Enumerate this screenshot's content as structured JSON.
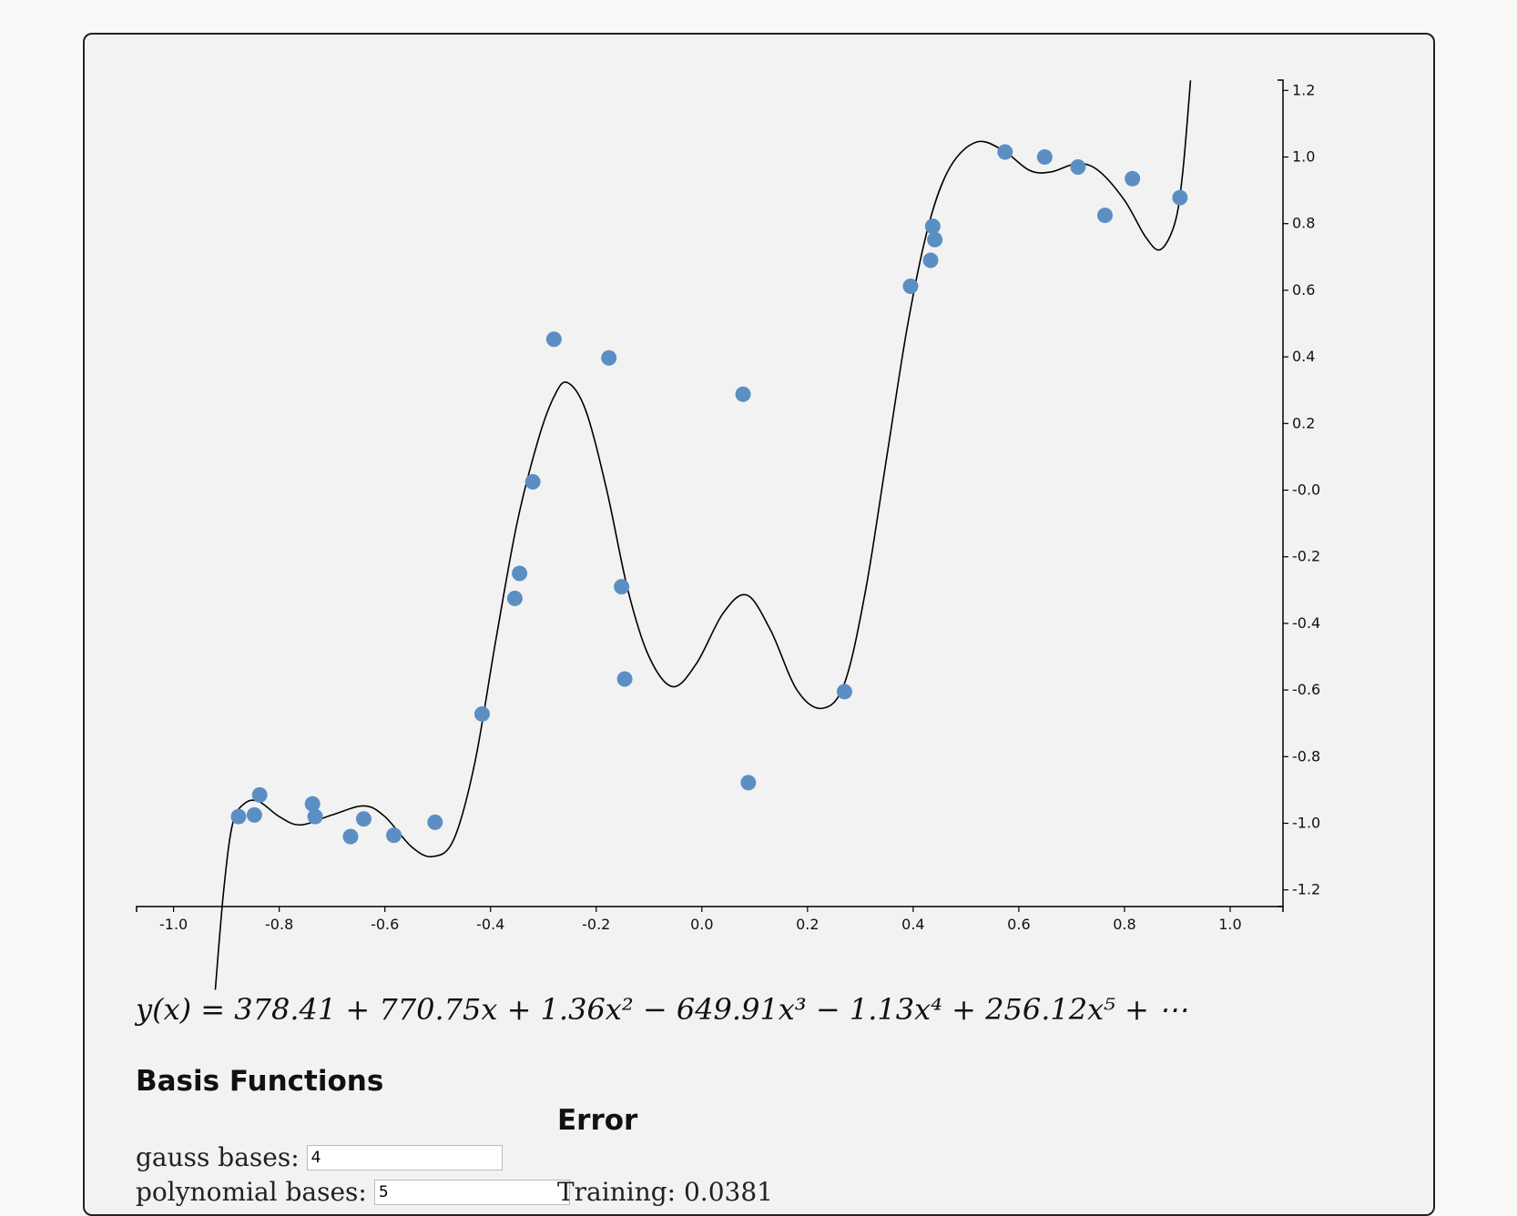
{
  "chart_data": {
    "type": "scatter",
    "xlim": [
      -1.07,
      1.1
    ],
    "ylim": [
      -1.25,
      1.22
    ],
    "x_ticks": [
      -1.0,
      -0.8,
      -0.6,
      -0.4,
      -0.2,
      0.0,
      0.2,
      0.4,
      0.6,
      0.8,
      1.0
    ],
    "x_tick_labels": [
      "-1.0",
      "-0.8",
      "-0.6",
      "-0.4",
      "-0.2",
      "0.0",
      "0.2",
      "0.4",
      "0.6",
      "0.8",
      "1.0"
    ],
    "y_ticks": [
      1.2,
      1.0,
      0.8,
      0.6,
      0.4,
      0.2,
      0.0,
      -0.2,
      -0.4,
      -0.6,
      -0.8,
      -1.0,
      -1.2
    ],
    "y_tick_labels": [
      "1.2",
      "1.0",
      "0.8",
      "0.6",
      "0.4",
      "0.2",
      "-0.0",
      "-0.2",
      "-0.4",
      "-0.6",
      "-0.8",
      "-1.0",
      "-1.2"
    ],
    "grid": false,
    "y_axis_side": "right",
    "point_color": "#5b8fc3",
    "curve_color": "#000000",
    "points": [
      {
        "x": -0.877,
        "y": -0.98
      },
      {
        "x": -0.847,
        "y": -0.975
      },
      {
        "x": -0.837,
        "y": -0.915
      },
      {
        "x": -0.737,
        "y": -0.942
      },
      {
        "x": -0.732,
        "y": -0.98
      },
      {
        "x": -0.665,
        "y": -1.04
      },
      {
        "x": -0.64,
        "y": -0.987
      },
      {
        "x": -0.583,
        "y": -1.036
      },
      {
        "x": -0.505,
        "y": -0.997
      },
      {
        "x": -0.416,
        "y": -0.672
      },
      {
        "x": -0.354,
        "y": -0.325
      },
      {
        "x": -0.345,
        "y": -0.25
      },
      {
        "x": -0.32,
        "y": 0.025
      },
      {
        "x": -0.28,
        "y": 0.453
      },
      {
        "x": -0.176,
        "y": 0.397
      },
      {
        "x": -0.152,
        "y": -0.29
      },
      {
        "x": -0.146,
        "y": -0.567
      },
      {
        "x": 0.078,
        "y": 0.288
      },
      {
        "x": 0.088,
        "y": -0.878
      },
      {
        "x": 0.27,
        "y": -0.605
      },
      {
        "x": 0.395,
        "y": 0.612
      },
      {
        "x": 0.433,
        "y": 0.69
      },
      {
        "x": 0.437,
        "y": 0.792
      },
      {
        "x": 0.441,
        "y": 0.752
      },
      {
        "x": 0.574,
        "y": 1.015
      },
      {
        "x": 0.649,
        "y": 1.0
      },
      {
        "x": 0.712,
        "y": 0.97
      },
      {
        "x": 0.763,
        "y": 0.825
      },
      {
        "x": 0.815,
        "y": 0.935
      },
      {
        "x": 0.905,
        "y": 0.878
      }
    ],
    "fit_curve": [
      {
        "x": -0.921,
        "y": -1.5
      },
      {
        "x": -0.905,
        "y": -1.2
      },
      {
        "x": -0.888,
        "y": -1.0
      },
      {
        "x": -0.865,
        "y": -0.94
      },
      {
        "x": -0.838,
        "y": -0.935
      },
      {
        "x": -0.8,
        "y": -0.98
      },
      {
        "x": -0.76,
        "y": -1.005
      },
      {
        "x": -0.7,
        "y": -0.975
      },
      {
        "x": -0.64,
        "y": -0.948
      },
      {
        "x": -0.6,
        "y": -0.98
      },
      {
        "x": -0.55,
        "y": -1.07
      },
      {
        "x": -0.51,
        "y": -1.1
      },
      {
        "x": -0.47,
        "y": -1.05
      },
      {
        "x": -0.43,
        "y": -0.82
      },
      {
        "x": -0.39,
        "y": -0.45
      },
      {
        "x": -0.35,
        "y": -0.1
      },
      {
        "x": -0.31,
        "y": 0.15
      },
      {
        "x": -0.28,
        "y": 0.28
      },
      {
        "x": -0.255,
        "y": 0.323
      },
      {
        "x": -0.22,
        "y": 0.24
      },
      {
        "x": -0.18,
        "y": 0.0
      },
      {
        "x": -0.14,
        "y": -0.3
      },
      {
        "x": -0.1,
        "y": -0.5
      },
      {
        "x": -0.055,
        "y": -0.59
      },
      {
        "x": -0.01,
        "y": -0.52
      },
      {
        "x": 0.04,
        "y": -0.37
      },
      {
        "x": 0.085,
        "y": -0.315
      },
      {
        "x": 0.13,
        "y": -0.42
      },
      {
        "x": 0.18,
        "y": -0.6
      },
      {
        "x": 0.228,
        "y": -0.655
      },
      {
        "x": 0.27,
        "y": -0.58
      },
      {
        "x": 0.31,
        "y": -0.3
      },
      {
        "x": 0.35,
        "y": 0.1
      },
      {
        "x": 0.39,
        "y": 0.5
      },
      {
        "x": 0.43,
        "y": 0.8
      },
      {
        "x": 0.47,
        "y": 0.97
      },
      {
        "x": 0.52,
        "y": 1.045
      },
      {
        "x": 0.57,
        "y": 1.02
      },
      {
        "x": 0.62,
        "y": 0.96
      },
      {
        "x": 0.66,
        "y": 0.955
      },
      {
        "x": 0.71,
        "y": 0.98
      },
      {
        "x": 0.75,
        "y": 0.96
      },
      {
        "x": 0.8,
        "y": 0.87
      },
      {
        "x": 0.84,
        "y": 0.76
      },
      {
        "x": 0.868,
        "y": 0.722
      },
      {
        "x": 0.895,
        "y": 0.8
      },
      {
        "x": 0.91,
        "y": 0.95
      },
      {
        "x": 0.925,
        "y": 1.23
      }
    ]
  },
  "formula": {
    "text": "y(x) = 378.41 + 770.75x + 1.36x² − 649.91x³ − 1.13x⁴ + 256.12x⁵ + ⋯"
  },
  "basis": {
    "title": "Basis Functions",
    "gauss_label": "gauss bases:",
    "gauss_value": "4",
    "poly_label": "polynomial bases:",
    "poly_value": "5"
  },
  "error": {
    "title": "Error",
    "training_text": "Training: 0.0381"
  }
}
